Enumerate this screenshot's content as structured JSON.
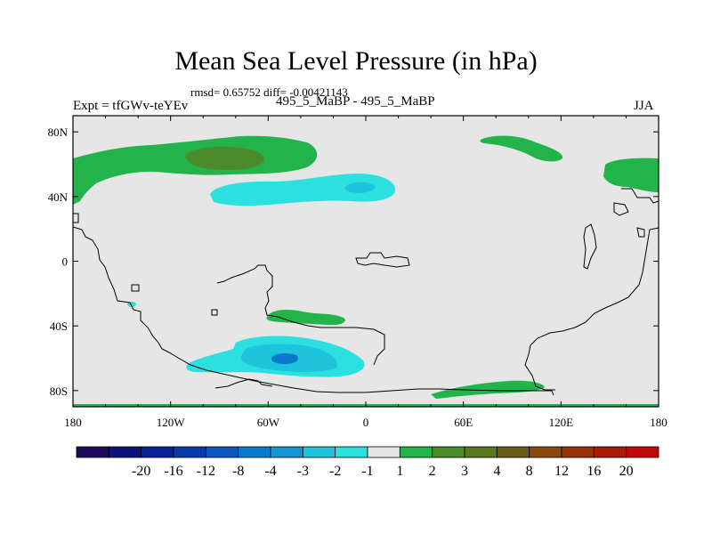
{
  "chart_data": {
    "type": "contour-map",
    "title": "Mean Sea Level Pressure (in hPa)",
    "stats_text": "rmsd= 0.65752 diff= -0.00421143",
    "experiment_label": "Expt = tfGWv-teYEv",
    "case_label": "495_5_MaBP - 495_5_MaBP",
    "season": "JJA",
    "x_ticks": [
      "180",
      "120W",
      "60W",
      "0",
      "60E",
      "120E",
      "180"
    ],
    "x_tick_values": [
      -180,
      -120,
      -60,
      0,
      60,
      120,
      180
    ],
    "y_ticks": [
      "80N",
      "40N",
      "0",
      "40S",
      "80S"
    ],
    "y_tick_values": [
      80,
      40,
      0,
      -40,
      -80
    ],
    "xlim": [
      -180,
      180
    ],
    "ylim": [
      -90,
      90
    ],
    "colorbar": {
      "labels": [
        "-20",
        "-16",
        "-12",
        "-8",
        "-4",
        "-3",
        "-2",
        "-1",
        "1",
        "2",
        "3",
        "4",
        "8",
        "12",
        "16",
        "20"
      ],
      "colors": [
        "#1e0a5a",
        "#0c137a",
        "#0a2296",
        "#0a3aa8",
        "#0c56c0",
        "#0a78cc",
        "#1496d2",
        "#1ec3dc",
        "#2ce0e0",
        "#e6e6e6",
        "#22b44a",
        "#4a8c2a",
        "#56781e",
        "#6a5a14",
        "#8a4a0c",
        "#98300a",
        "#a81a0a",
        "#c00a0a"
      ]
    },
    "fields": [
      {
        "name": "north-pacific-positive",
        "level": "1 to 2",
        "color": "#22b44a"
      },
      {
        "name": "north-pacific-core",
        "level": "3 to 4",
        "color": "#4a8c2a"
      },
      {
        "name": "mid-lat-negative",
        "level": "-2 to -1",
        "color": "#2ce0e0"
      },
      {
        "name": "mid-lat-negative-core",
        "level": "-3 to -2",
        "color": "#1ec3dc"
      },
      {
        "name": "southern-negative",
        "level": "-2 to -1",
        "color": "#2ce0e0"
      },
      {
        "name": "southern-negative-mid",
        "level": "-3 to -2",
        "color": "#1ec3dc"
      },
      {
        "name": "southern-negative-core",
        "level": "-4 to -3",
        "color": "#0a78cc"
      },
      {
        "name": "southern-positive",
        "level": "1 to 2",
        "color": "#22b44a"
      }
    ]
  }
}
